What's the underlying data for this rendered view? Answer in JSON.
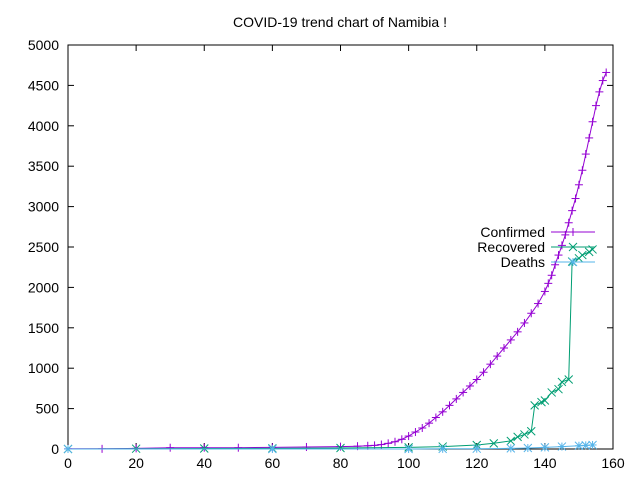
{
  "chart_data": {
    "type": "line",
    "title": "COVID-19 trend chart of Namibia !",
    "xlabel": "",
    "ylabel": "",
    "xlim": [
      0,
      160
    ],
    "ylim": [
      0,
      5000
    ],
    "xticks": [
      0,
      20,
      40,
      60,
      80,
      100,
      120,
      140,
      160
    ],
    "yticks": [
      0,
      500,
      1000,
      1500,
      2000,
      2500,
      3000,
      3500,
      4000,
      4500,
      5000
    ],
    "grid": false,
    "legend_position": "right",
    "series": [
      {
        "name": "Confirmed",
        "color": "#9400d3",
        "marker": "plus",
        "points": [
          [
            0,
            2
          ],
          [
            10,
            2
          ],
          [
            20,
            8
          ],
          [
            30,
            16
          ],
          [
            40,
            16
          ],
          [
            50,
            16
          ],
          [
            60,
            20
          ],
          [
            70,
            25
          ],
          [
            80,
            30
          ],
          [
            85,
            35
          ],
          [
            88,
            40
          ],
          [
            90,
            45
          ],
          [
            92,
            55
          ],
          [
            94,
            70
          ],
          [
            96,
            90
          ],
          [
            98,
            120
          ],
          [
            100,
            160
          ],
          [
            102,
            210
          ],
          [
            104,
            260
          ],
          [
            106,
            320
          ],
          [
            108,
            390
          ],
          [
            110,
            460
          ],
          [
            112,
            540
          ],
          [
            114,
            620
          ],
          [
            116,
            700
          ],
          [
            118,
            780
          ],
          [
            120,
            860
          ],
          [
            122,
            950
          ],
          [
            124,
            1050
          ],
          [
            126,
            1150
          ],
          [
            128,
            1250
          ],
          [
            130,
            1350
          ],
          [
            132,
            1450
          ],
          [
            134,
            1560
          ],
          [
            136,
            1680
          ],
          [
            138,
            1800
          ],
          [
            140,
            1950
          ],
          [
            141,
            2050
          ],
          [
            142,
            2150
          ],
          [
            143,
            2280
          ],
          [
            144,
            2400
          ],
          [
            145,
            2520
          ],
          [
            146,
            2650
          ],
          [
            147,
            2800
          ],
          [
            148,
            2950
          ],
          [
            149,
            3100
          ],
          [
            150,
            3270
          ],
          [
            151,
            3450
          ],
          [
            152,
            3650
          ],
          [
            153,
            3850
          ],
          [
            154,
            4050
          ],
          [
            155,
            4250
          ],
          [
            156,
            4420
          ],
          [
            157,
            4560
          ],
          [
            158,
            4660
          ]
        ]
      },
      {
        "name": "Recovered",
        "color": "#009e73",
        "marker": "cross",
        "points": [
          [
            0,
            0
          ],
          [
            20,
            4
          ],
          [
            40,
            6
          ],
          [
            60,
            8
          ],
          [
            80,
            12
          ],
          [
            100,
            20
          ],
          [
            110,
            30
          ],
          [
            120,
            50
          ],
          [
            125,
            70
          ],
          [
            130,
            100
          ],
          [
            132,
            150
          ],
          [
            134,
            180
          ],
          [
            136,
            220
          ],
          [
            137,
            540
          ],
          [
            139,
            580
          ],
          [
            140,
            600
          ],
          [
            142,
            700
          ],
          [
            144,
            740
          ],
          [
            145,
            830
          ],
          [
            147,
            860
          ],
          [
            148,
            2320
          ],
          [
            150,
            2360
          ],
          [
            151,
            2400
          ],
          [
            153,
            2440
          ],
          [
            154,
            2470
          ]
        ]
      },
      {
        "name": "Deaths",
        "color": "#56b4e9",
        "marker": "asterisk",
        "points": [
          [
            0,
            0
          ],
          [
            60,
            0
          ],
          [
            100,
            0
          ],
          [
            110,
            2
          ],
          [
            120,
            4
          ],
          [
            130,
            8
          ],
          [
            135,
            12
          ],
          [
            140,
            20
          ],
          [
            145,
            30
          ],
          [
            150,
            40
          ],
          [
            152,
            45
          ],
          [
            154,
            50
          ]
        ]
      }
    ]
  }
}
